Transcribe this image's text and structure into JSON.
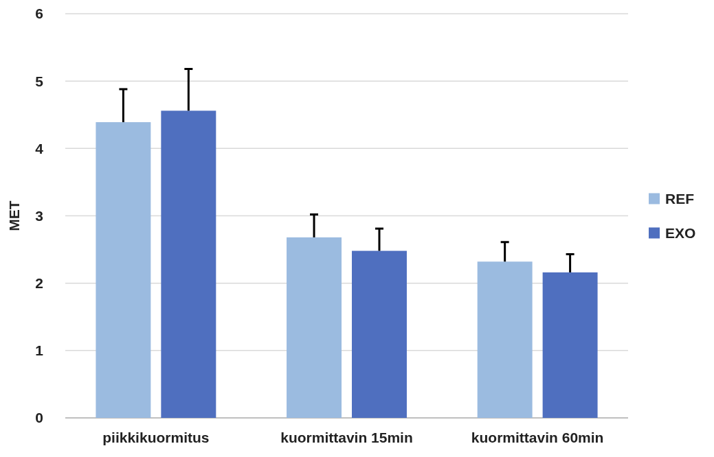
{
  "chart_data": {
    "type": "bar",
    "ylabel": "MET",
    "categories": [
      "piikkikuormitus",
      "kuormittavin 15min",
      "kuormittavin 60min"
    ],
    "series": [
      {
        "name": "REF",
        "color": "#9bbbe0",
        "values": [
          4.39,
          2.68,
          2.32
        ],
        "errors": [
          [
            4.39,
            4.88
          ],
          [
            2.68,
            3.02
          ],
          [
            2.32,
            2.61
          ]
        ]
      },
      {
        "name": "EXO",
        "color": "#4f6fbf",
        "values": [
          4.56,
          2.48,
          2.16
        ],
        "errors": [
          [
            4.56,
            5.18
          ],
          [
            2.48,
            2.81
          ],
          [
            2.16,
            2.43
          ]
        ]
      }
    ],
    "ylim": [
      0,
      6
    ],
    "yticks": [
      0,
      1,
      2,
      3,
      4,
      5,
      6
    ],
    "grid": "y",
    "legend": "right"
  }
}
